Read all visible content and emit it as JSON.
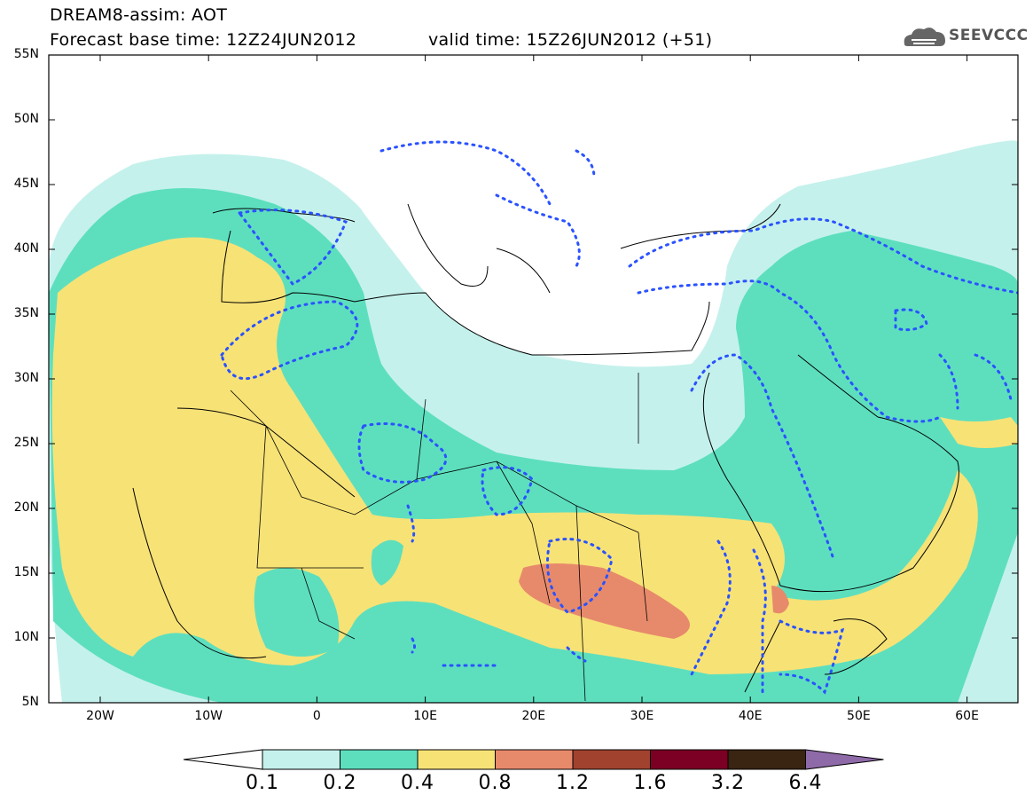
{
  "header": {
    "title": "DREAM8-assim: AOT",
    "base_time": "Forecast base time: 12Z24JUN2012",
    "valid_time": "valid time: 15Z26JUN2012 (+51)",
    "logo_text": "SEEVCCC"
  },
  "axes": {
    "lat_labels": [
      "55N",
      "50N",
      "45N",
      "40N",
      "35N",
      "30N",
      "25N",
      "20N",
      "15N",
      "10N",
      "5N"
    ],
    "lon_labels": [
      "20W",
      "10W",
      "0",
      "10E",
      "20E",
      "30E",
      "40E",
      "50E",
      "60E"
    ]
  },
  "legend": {
    "labels": [
      "0.1",
      "0.2",
      "0.4",
      "0.8",
      "1.2",
      "1.6",
      "3.2",
      "6.4"
    ],
    "colors": [
      "#ffffff",
      "#c5f1ec",
      "#5ddfbe",
      "#f7e276",
      "#e78a6b",
      "#a0422e",
      "#7b0023",
      "#3a2412",
      "#8f6aa8"
    ]
  }
}
